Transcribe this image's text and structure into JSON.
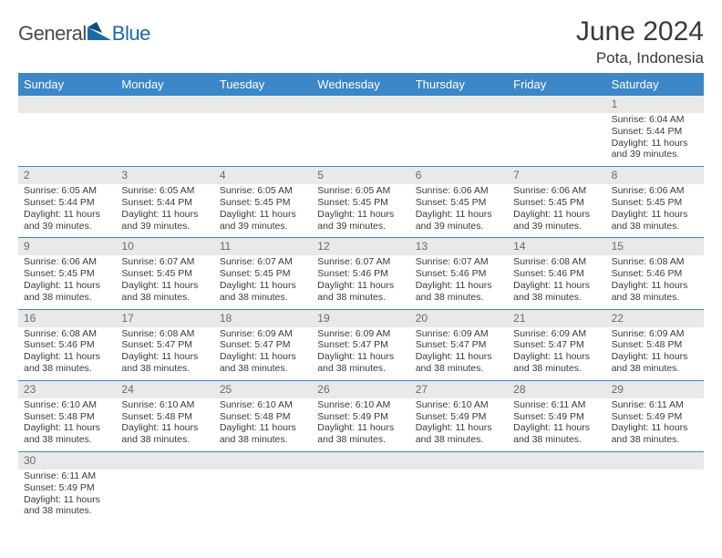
{
  "brand": {
    "general": "General",
    "blue": "Blue"
  },
  "title": "June 2024",
  "location": "Pota, Indonesia",
  "colors": {
    "header_bar": "#3c87c7",
    "daynum_bg": "#e9e9e9",
    "text": "#3a3a3a",
    "brand_blue": "#1b6aa5"
  },
  "days_of_week": [
    "Sunday",
    "Monday",
    "Tuesday",
    "Wednesday",
    "Thursday",
    "Friday",
    "Saturday"
  ],
  "weeks": [
    [
      null,
      null,
      null,
      null,
      null,
      null,
      {
        "n": "1",
        "rise": "Sunrise: 6:04 AM",
        "set": "Sunset: 5:44 PM",
        "d1": "Daylight: 11 hours",
        "d2": "and 39 minutes."
      }
    ],
    [
      {
        "n": "2",
        "rise": "Sunrise: 6:05 AM",
        "set": "Sunset: 5:44 PM",
        "d1": "Daylight: 11 hours",
        "d2": "and 39 minutes."
      },
      {
        "n": "3",
        "rise": "Sunrise: 6:05 AM",
        "set": "Sunset: 5:44 PM",
        "d1": "Daylight: 11 hours",
        "d2": "and 39 minutes."
      },
      {
        "n": "4",
        "rise": "Sunrise: 6:05 AM",
        "set": "Sunset: 5:45 PM",
        "d1": "Daylight: 11 hours",
        "d2": "and 39 minutes."
      },
      {
        "n": "5",
        "rise": "Sunrise: 6:05 AM",
        "set": "Sunset: 5:45 PM",
        "d1": "Daylight: 11 hours",
        "d2": "and 39 minutes."
      },
      {
        "n": "6",
        "rise": "Sunrise: 6:06 AM",
        "set": "Sunset: 5:45 PM",
        "d1": "Daylight: 11 hours",
        "d2": "and 39 minutes."
      },
      {
        "n": "7",
        "rise": "Sunrise: 6:06 AM",
        "set": "Sunset: 5:45 PM",
        "d1": "Daylight: 11 hours",
        "d2": "and 39 minutes."
      },
      {
        "n": "8",
        "rise": "Sunrise: 6:06 AM",
        "set": "Sunset: 5:45 PM",
        "d1": "Daylight: 11 hours",
        "d2": "and 38 minutes."
      }
    ],
    [
      {
        "n": "9",
        "rise": "Sunrise: 6:06 AM",
        "set": "Sunset: 5:45 PM",
        "d1": "Daylight: 11 hours",
        "d2": "and 38 minutes."
      },
      {
        "n": "10",
        "rise": "Sunrise: 6:07 AM",
        "set": "Sunset: 5:45 PM",
        "d1": "Daylight: 11 hours",
        "d2": "and 38 minutes."
      },
      {
        "n": "11",
        "rise": "Sunrise: 6:07 AM",
        "set": "Sunset: 5:45 PM",
        "d1": "Daylight: 11 hours",
        "d2": "and 38 minutes."
      },
      {
        "n": "12",
        "rise": "Sunrise: 6:07 AM",
        "set": "Sunset: 5:46 PM",
        "d1": "Daylight: 11 hours",
        "d2": "and 38 minutes."
      },
      {
        "n": "13",
        "rise": "Sunrise: 6:07 AM",
        "set": "Sunset: 5:46 PM",
        "d1": "Daylight: 11 hours",
        "d2": "and 38 minutes."
      },
      {
        "n": "14",
        "rise": "Sunrise: 6:08 AM",
        "set": "Sunset: 5:46 PM",
        "d1": "Daylight: 11 hours",
        "d2": "and 38 minutes."
      },
      {
        "n": "15",
        "rise": "Sunrise: 6:08 AM",
        "set": "Sunset: 5:46 PM",
        "d1": "Daylight: 11 hours",
        "d2": "and 38 minutes."
      }
    ],
    [
      {
        "n": "16",
        "rise": "Sunrise: 6:08 AM",
        "set": "Sunset: 5:46 PM",
        "d1": "Daylight: 11 hours",
        "d2": "and 38 minutes."
      },
      {
        "n": "17",
        "rise": "Sunrise: 6:08 AM",
        "set": "Sunset: 5:47 PM",
        "d1": "Daylight: 11 hours",
        "d2": "and 38 minutes."
      },
      {
        "n": "18",
        "rise": "Sunrise: 6:09 AM",
        "set": "Sunset: 5:47 PM",
        "d1": "Daylight: 11 hours",
        "d2": "and 38 minutes."
      },
      {
        "n": "19",
        "rise": "Sunrise: 6:09 AM",
        "set": "Sunset: 5:47 PM",
        "d1": "Daylight: 11 hours",
        "d2": "and 38 minutes."
      },
      {
        "n": "20",
        "rise": "Sunrise: 6:09 AM",
        "set": "Sunset: 5:47 PM",
        "d1": "Daylight: 11 hours",
        "d2": "and 38 minutes."
      },
      {
        "n": "21",
        "rise": "Sunrise: 6:09 AM",
        "set": "Sunset: 5:47 PM",
        "d1": "Daylight: 11 hours",
        "d2": "and 38 minutes."
      },
      {
        "n": "22",
        "rise": "Sunrise: 6:09 AM",
        "set": "Sunset: 5:48 PM",
        "d1": "Daylight: 11 hours",
        "d2": "and 38 minutes."
      }
    ],
    [
      {
        "n": "23",
        "rise": "Sunrise: 6:10 AM",
        "set": "Sunset: 5:48 PM",
        "d1": "Daylight: 11 hours",
        "d2": "and 38 minutes."
      },
      {
        "n": "24",
        "rise": "Sunrise: 6:10 AM",
        "set": "Sunset: 5:48 PM",
        "d1": "Daylight: 11 hours",
        "d2": "and 38 minutes."
      },
      {
        "n": "25",
        "rise": "Sunrise: 6:10 AM",
        "set": "Sunset: 5:48 PM",
        "d1": "Daylight: 11 hours",
        "d2": "and 38 minutes."
      },
      {
        "n": "26",
        "rise": "Sunrise: 6:10 AM",
        "set": "Sunset: 5:49 PM",
        "d1": "Daylight: 11 hours",
        "d2": "and 38 minutes."
      },
      {
        "n": "27",
        "rise": "Sunrise: 6:10 AM",
        "set": "Sunset: 5:49 PM",
        "d1": "Daylight: 11 hours",
        "d2": "and 38 minutes."
      },
      {
        "n": "28",
        "rise": "Sunrise: 6:11 AM",
        "set": "Sunset: 5:49 PM",
        "d1": "Daylight: 11 hours",
        "d2": "and 38 minutes."
      },
      {
        "n": "29",
        "rise": "Sunrise: 6:11 AM",
        "set": "Sunset: 5:49 PM",
        "d1": "Daylight: 11 hours",
        "d2": "and 38 minutes."
      }
    ],
    [
      {
        "n": "30",
        "rise": "Sunrise: 6:11 AM",
        "set": "Sunset: 5:49 PM",
        "d1": "Daylight: 11 hours",
        "d2": "and 38 minutes."
      },
      null,
      null,
      null,
      null,
      null,
      null
    ]
  ]
}
